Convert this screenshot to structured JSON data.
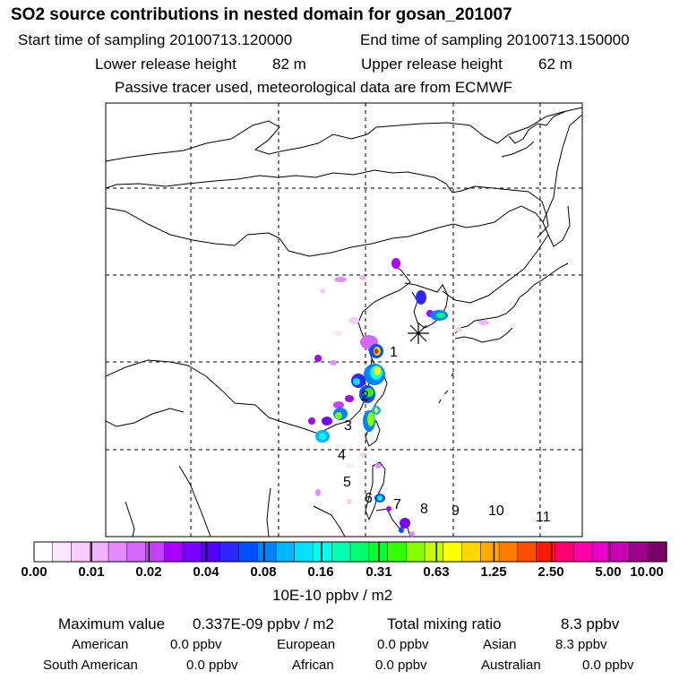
{
  "header": {
    "title": "SO2 source contributions in nested domain for gosan_201007",
    "start_label": "Start time of sampling 20100713.120000",
    "end_label": "End time of sampling 20100713.150000",
    "lower_label": "Lower release height",
    "lower_value": "82 m",
    "upper_label": "Upper release height",
    "upper_value": "62 m",
    "note": "Passive tracer used, meteorological data are from ECMWF"
  },
  "map": {
    "region_labels": [
      "1",
      "2",
      "3",
      "4",
      "5",
      "6",
      "7",
      "8",
      "9",
      "10",
      "11"
    ]
  },
  "colorbar": {
    "colors": [
      "#ffffff",
      "#fde6ff",
      "#f9ccff",
      "#f4b3ff",
      "#e58cff",
      "#d766ff",
      "#c340ff",
      "#a800ff",
      "#7a00ff",
      "#5300ff",
      "#2d26ff",
      "#0050ff",
      "#0083ff",
      "#00b6ff",
      "#00e2ff",
      "#00ffee",
      "#00ffb3",
      "#00ff70",
      "#00ff33",
      "#33ff00",
      "#88ff00",
      "#c8ff00",
      "#ffff00",
      "#ffd700",
      "#ffaa00",
      "#ff7e00",
      "#ff4e00",
      "#ff1900",
      "#ff006e",
      "#ff00a8",
      "#ee00cc",
      "#c800b4",
      "#a0008e",
      "#7a0068"
    ],
    "tick_labels": [
      "0.00",
      "0.01",
      "0.02",
      "0.04",
      "0.08",
      "0.16",
      "0.31",
      "0.63",
      "1.25",
      "2.50",
      "5.00",
      "10.00"
    ],
    "units": "10E-10 ppbv / m2"
  },
  "footer": {
    "max_label": "Maximum value",
    "max_value": "0.337E-09 ppbv / m2",
    "total_label": "Total mixing ratio",
    "total_value": "8.3 ppbv",
    "regions": [
      {
        "name": "American",
        "value": "0.0 ppbv"
      },
      {
        "name": "European",
        "value": "0.0 ppbv"
      },
      {
        "name": "Asian",
        "value": "8.3 ppbv"
      },
      {
        "name": "South American",
        "value": "0.0 ppbv"
      },
      {
        "name": "African",
        "value": "0.0 ppbv"
      },
      {
        "name": "Australian",
        "value": "0.0 ppbv"
      }
    ]
  }
}
